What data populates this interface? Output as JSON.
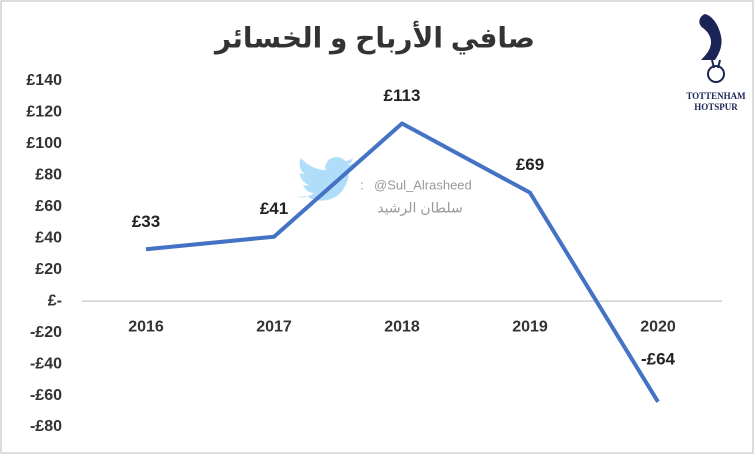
{
  "chart_data": {
    "type": "line",
    "title": "صافي الأرباح و الخسائر",
    "categories": [
      "2016",
      "2017",
      "2018",
      "2019",
      "2020"
    ],
    "values": [
      33,
      41,
      113,
      69,
      -64
    ],
    "value_labels": [
      "£33",
      "£41",
      "£113",
      "£69",
      "-£64"
    ],
    "color": "#4472c4",
    "ylim": [
      -80,
      140
    ],
    "yticks": [
      {
        "value": -80,
        "label": "-£80"
      },
      {
        "value": -60,
        "label": "-£60"
      },
      {
        "value": -40,
        "label": "-£40"
      },
      {
        "value": -20,
        "label": "-£20"
      },
      {
        "value": 0,
        "label": "£-"
      },
      {
        "value": 20,
        "label": "£20"
      },
      {
        "value": 40,
        "label": "£40"
      },
      {
        "value": 60,
        "label": "£60"
      },
      {
        "value": 80,
        "label": "£80"
      },
      {
        "value": 100,
        "label": "£100"
      },
      {
        "value": 120,
        "label": "£120"
      },
      {
        "value": 140,
        "label": "£140"
      }
    ],
    "grid": false,
    "watermark": [
      "@Sul_Alrasheed",
      "سلطان الرشيد"
    ],
    "logo_text": [
      "TOTTENHAM",
      "HOTSPUR"
    ]
  }
}
